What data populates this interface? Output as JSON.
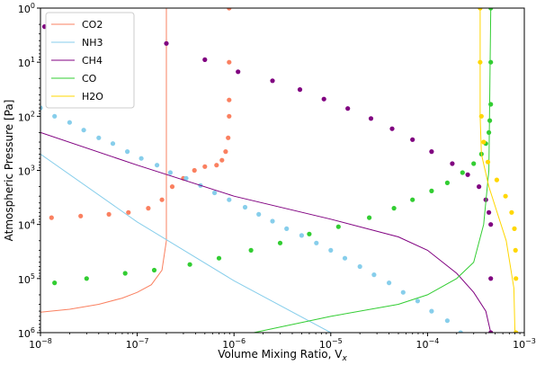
{
  "chart_data": {
    "type": "line",
    "title": "",
    "xlabel": "Volume Mixing Ratio, V",
    "xlabel_sub": "x",
    "ylabel": "Atmospheric Pressure [Pa]",
    "x_scale": "log",
    "y_scale": "log",
    "y_inverted": true,
    "xlim": [
      1e-08,
      0.001
    ],
    "ylim": [
      1,
      1000000
    ],
    "grid": false,
    "legend_position": "top-left",
    "x_ticks": [
      {
        "value": 1e-08,
        "base": "10",
        "exp": "−8"
      },
      {
        "value": 1e-07,
        "base": "10",
        "exp": "−7"
      },
      {
        "value": 1e-06,
        "base": "10",
        "exp": "−6"
      },
      {
        "value": 1e-05,
        "base": "10",
        "exp": "−5"
      },
      {
        "value": 0.0001,
        "base": "10",
        "exp": "−4"
      },
      {
        "value": 0.001,
        "base": "10",
        "exp": "−3"
      }
    ],
    "y_ticks": [
      {
        "value": 1,
        "base": "10",
        "exp": "0"
      },
      {
        "value": 10,
        "base": "10",
        "exp": "1"
      },
      {
        "value": 100,
        "base": "10",
        "exp": "2"
      },
      {
        "value": 1000,
        "base": "10",
        "exp": "3"
      },
      {
        "value": 10000,
        "base": "10",
        "exp": "4"
      },
      {
        "value": 100000,
        "base": "10",
        "exp": "5"
      },
      {
        "value": 1000000,
        "base": "10",
        "exp": "6"
      }
    ],
    "series": [
      {
        "name": "CO2",
        "color": "#fa8060",
        "line": [
          [
            1e-08,
            420000
          ],
          [
            2e-08,
            370000
          ],
          [
            4e-08,
            300000
          ],
          [
            7e-08,
            230000
          ],
          [
            1e-07,
            180000
          ],
          [
            1.4e-07,
            130000
          ],
          [
            1.8e-07,
            70000
          ],
          [
            2e-07,
            20000
          ],
          [
            2e-07,
            1
          ]
        ],
        "markers": [
          [
            8.9e-07,
            1
          ],
          [
            8.9e-07,
            10
          ],
          [
            8.9e-07,
            50
          ],
          [
            8.9e-07,
            100
          ],
          [
            8.7e-07,
            250
          ],
          [
            8.2e-07,
            450
          ],
          [
            7.5e-07,
            650
          ],
          [
            6.6e-07,
            800
          ],
          [
            5e-07,
            850
          ],
          [
            3.9e-07,
            1000
          ],
          [
            3e-07,
            1400
          ],
          [
            2.3e-07,
            2000
          ],
          [
            1.8e-07,
            3500
          ],
          [
            1.3e-07,
            5000
          ],
          [
            8.1e-08,
            6000
          ],
          [
            5.1e-08,
            6500
          ],
          [
            2.6e-08,
            7000
          ],
          [
            1.3e-08,
            7500
          ]
        ]
      },
      {
        "name": "NH3",
        "color": "#87ceeb",
        "line": [
          [
            1e-08,
            500
          ],
          [
            1e-07,
            9000
          ],
          [
            1e-06,
            110000
          ],
          [
            1e-05,
            1000000
          ]
        ],
        "markers": [
          [
            1e-08,
            70
          ],
          [
            1.4e-08,
            100
          ],
          [
            2e-08,
            130
          ],
          [
            2.8e-08,
            180
          ],
          [
            4e-08,
            250
          ],
          [
            5.6e-08,
            320
          ],
          [
            7.9e-08,
            450
          ],
          [
            1.1e-07,
            600
          ],
          [
            1.6e-07,
            800
          ],
          [
            2.2e-07,
            1100
          ],
          [
            3.2e-07,
            1400
          ],
          [
            4.5e-07,
            1900
          ],
          [
            6.3e-07,
            2600
          ],
          [
            8.9e-07,
            3500
          ],
          [
            1.3e-06,
            4800
          ],
          [
            1.8e-06,
            6500
          ],
          [
            2.5e-06,
            8700
          ],
          [
            3.5e-06,
            12000
          ],
          [
            5e-06,
            16000
          ],
          [
            7.1e-06,
            22000
          ],
          [
            1e-05,
            30000
          ],
          [
            1.4e-05,
            42000
          ],
          [
            2e-05,
            60000
          ],
          [
            2.8e-05,
            85000
          ],
          [
            4e-05,
            120000
          ],
          [
            5.6e-05,
            180000
          ],
          [
            7.9e-05,
            260000
          ],
          [
            0.00011,
            400000
          ],
          [
            0.00016,
            600000
          ],
          [
            0.00022,
            1000000
          ]
        ]
      },
      {
        "name": "CH4",
        "color": "#800080",
        "line": [
          [
            1e-08,
            200
          ],
          [
            1e-07,
            800
          ],
          [
            1e-06,
            3000
          ],
          [
            1e-05,
            8000
          ],
          [
            5e-05,
            17000
          ],
          [
            0.0001,
            30000
          ],
          [
            0.0002,
            80000
          ],
          [
            0.0003,
            180000
          ],
          [
            0.0004,
            400000
          ],
          [
            0.00045,
            1000000
          ]
        ],
        "markers": [
          [
            1.1e-08,
            2.2
          ],
          [
            2e-07,
            4.5
          ],
          [
            5e-07,
            9
          ],
          [
            1.1e-06,
            15
          ],
          [
            2.5e-06,
            22
          ],
          [
            4.8e-06,
            32
          ],
          [
            8.5e-06,
            48
          ],
          [
            1.5e-05,
            72
          ],
          [
            2.6e-05,
            110
          ],
          [
            4.3e-05,
            170
          ],
          [
            7e-05,
            270
          ],
          [
            0.00011,
            450
          ],
          [
            0.00018,
            750
          ],
          [
            0.00026,
            1200
          ],
          [
            0.00034,
            2000
          ],
          [
            0.0004,
            3500
          ],
          [
            0.00043,
            6000
          ],
          [
            0.00045,
            10000
          ],
          [
            0.00045,
            100000
          ],
          [
            0.00045,
            1000000
          ]
        ]
      },
      {
        "name": "CO",
        "color": "#32cd32",
        "line": [
          [
            1.6e-06,
            1000000
          ],
          [
            1e-05,
            500000
          ],
          [
            5e-05,
            300000
          ],
          [
            0.0001,
            200000
          ],
          [
            0.0002,
            100000
          ],
          [
            0.0003,
            50000
          ],
          [
            0.00038,
            10000
          ],
          [
            0.00043,
            1000
          ],
          [
            0.00045,
            1
          ]
        ],
        "markers": [
          [
            1.4e-08,
            120000
          ],
          [
            3e-08,
            100000
          ],
          [
            7.5e-08,
            80000
          ],
          [
            1.5e-07,
            70000
          ],
          [
            3.5e-07,
            55000
          ],
          [
            7e-07,
            42000
          ],
          [
            1.5e-06,
            30000
          ],
          [
            3e-06,
            22000
          ],
          [
            6e-06,
            15000
          ],
          [
            1.2e-05,
            11000
          ],
          [
            2.5e-05,
            7500
          ],
          [
            4.5e-05,
            5000
          ],
          [
            7e-05,
            3500
          ],
          [
            0.00011,
            2400
          ],
          [
            0.00016,
            1700
          ],
          [
            0.00023,
            1100
          ],
          [
            0.0003,
            750
          ],
          [
            0.00036,
            500
          ],
          [
            0.0004,
            320
          ],
          [
            0.00043,
            200
          ],
          [
            0.00044,
            120
          ],
          [
            0.00045,
            60
          ],
          [
            0.00045,
            10
          ],
          [
            0.00045,
            1
          ]
        ]
      },
      {
        "name": "H2O",
        "color": "#ffd700",
        "line": [
          [
            0.00035,
            1
          ],
          [
            0.00035,
            100
          ],
          [
            0.00036,
            500
          ],
          [
            0.00043,
            2000
          ],
          [
            0.00065,
            20000
          ],
          [
            0.00078,
            150000
          ],
          [
            0.0008,
            1000000
          ]
        ],
        "markers": [
          [
            0.00035,
            1
          ],
          [
            0.00035,
            10
          ],
          [
            0.00036,
            100
          ],
          [
            0.00038,
            300
          ],
          [
            0.00042,
            700
          ],
          [
            0.00052,
            1500
          ],
          [
            0.00064,
            3000
          ],
          [
            0.00074,
            6000
          ],
          [
            0.00079,
            12000
          ],
          [
            0.00081,
            30000
          ],
          [
            0.00082,
            100000
          ],
          [
            0.00082,
            1000000
          ]
        ]
      }
    ]
  }
}
